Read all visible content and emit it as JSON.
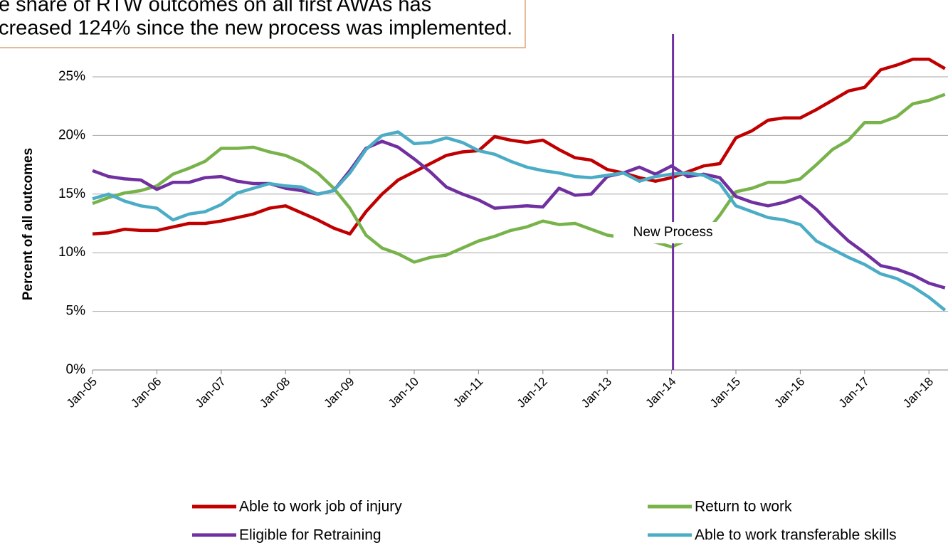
{
  "chart_data": {
    "type": "line",
    "annotation_box": [
      "e share of RTW outcomes on all first AWAs has",
      "creased 124% since the new process was implemented."
    ],
    "y_label": "Percent of all outcomes",
    "categories": [
      "Jan-05",
      null,
      null,
      null,
      "Jan-06",
      null,
      null,
      null,
      "Jan-07",
      null,
      null,
      null,
      "Jan-08",
      null,
      null,
      null,
      "Jan-09",
      null,
      null,
      null,
      "Jan-10",
      null,
      null,
      null,
      "Jan-11",
      null,
      null,
      null,
      "Jan-12",
      null,
      null,
      null,
      "Jan-13",
      null,
      null,
      null,
      "Jan-14",
      null,
      null,
      null,
      "Jan-15",
      null,
      null,
      null,
      "Jan-16",
      null,
      null,
      null,
      "Jan-17",
      null,
      null,
      null,
      "Jan-18",
      null
    ],
    "series": [
      {
        "name": "Able to work job of injury",
        "color": "#c00000",
        "values": [
          11.6,
          11.7,
          12.0,
          11.9,
          11.9,
          12.2,
          12.5,
          12.5,
          12.7,
          13.0,
          13.3,
          13.8,
          14.0,
          13.4,
          12.8,
          12.1,
          11.6,
          13.5,
          15.0,
          16.2,
          16.9,
          17.6,
          18.3,
          18.6,
          18.7,
          19.9,
          19.6,
          19.4,
          19.6,
          18.8,
          18.1,
          17.9,
          17.1,
          16.8,
          16.4,
          16.1,
          16.4,
          16.9,
          17.4,
          17.6,
          19.8,
          20.4,
          21.3,
          21.5,
          21.5,
          22.2,
          23.0,
          23.8,
          24.1,
          25.6,
          26.0,
          26.5,
          26.5,
          25.7
        ]
      },
      {
        "name": "Return to work",
        "color": "#77b34a",
        "values": [
          14.2,
          14.7,
          15.1,
          15.3,
          15.7,
          16.7,
          17.2,
          17.8,
          18.9,
          18.9,
          19.0,
          18.6,
          18.3,
          17.7,
          16.8,
          15.5,
          13.8,
          11.5,
          10.4,
          9.9,
          9.2,
          9.6,
          9.8,
          10.4,
          11.0,
          11.4,
          11.9,
          12.2,
          12.7,
          12.4,
          12.5,
          12.0,
          11.5,
          11.3,
          11.2,
          10.9,
          10.5,
          11.1,
          11.5,
          13.2,
          15.2,
          15.5,
          16.0,
          16.0,
          16.3,
          17.5,
          18.8,
          19.6,
          21.1,
          21.1,
          21.6,
          22.7,
          23.0,
          23.5
        ]
      },
      {
        "name": "Eligible for Retraining",
        "color": "#7030a0",
        "values": [
          17.0,
          16.5,
          16.3,
          16.2,
          15.4,
          16.0,
          16.0,
          16.4,
          16.5,
          16.1,
          15.9,
          15.9,
          15.5,
          15.3,
          15.0,
          15.3,
          17.0,
          18.9,
          19.5,
          19.0,
          18.0,
          16.9,
          15.6,
          15.0,
          14.5,
          13.8,
          13.9,
          14.0,
          13.9,
          15.5,
          14.9,
          15.0,
          16.5,
          16.8,
          17.3,
          16.7,
          17.4,
          16.5,
          16.7,
          16.4,
          14.8,
          14.3,
          14.0,
          14.3,
          14.8,
          13.7,
          12.3,
          11.0,
          10.0,
          8.9,
          8.6,
          8.1,
          7.4,
          7.0
        ]
      },
      {
        "name": "Able to work transferable skills",
        "color": "#4bacc6",
        "values": [
          14.6,
          15.0,
          14.4,
          14.0,
          13.8,
          12.8,
          13.3,
          13.5,
          14.1,
          15.1,
          15.5,
          15.9,
          15.7,
          15.6,
          15.0,
          15.3,
          16.8,
          18.8,
          20.0,
          20.3,
          19.3,
          19.4,
          19.8,
          19.4,
          18.7,
          18.4,
          17.8,
          17.3,
          17.0,
          16.8,
          16.5,
          16.4,
          16.6,
          16.8,
          16.1,
          16.5,
          16.7,
          16.8,
          16.6,
          15.9,
          14.0,
          13.5,
          13.0,
          12.8,
          12.4,
          11.0,
          10.3,
          9.6,
          9.0,
          8.2,
          7.8,
          7.1,
          6.2,
          5.1
        ]
      }
    ],
    "ylim": [
      0,
      30
    ],
    "yticks": [
      {
        "value": 0,
        "label": "0%"
      },
      {
        "value": 5,
        "label": "5%"
      },
      {
        "value": 10,
        "label": "10%"
      },
      {
        "value": 15,
        "label": "15%"
      },
      {
        "value": 20,
        "label": "20%"
      },
      {
        "value": 25,
        "label": "25%"
      }
    ],
    "grid": true,
    "event": {
      "x": "Jan-14",
      "label": "New Process",
      "color": "#7030a0"
    }
  }
}
